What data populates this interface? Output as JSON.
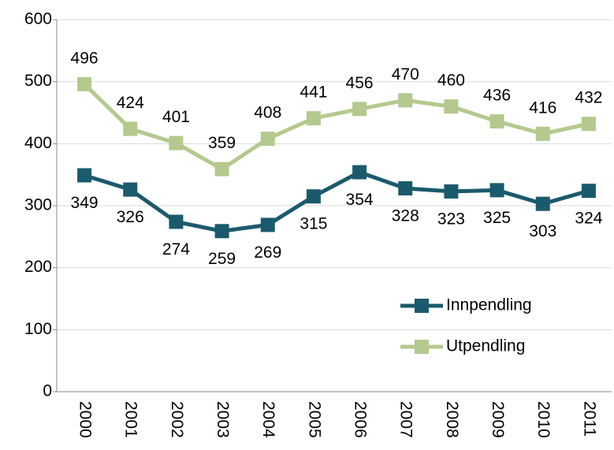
{
  "chart_data": {
    "type": "line",
    "categories": [
      "2000",
      "2001",
      "2002",
      "2003",
      "2004",
      "2005",
      "2006",
      "2007",
      "2008",
      "2009",
      "2010",
      "2011"
    ],
    "series": [
      {
        "name": "Innpendling",
        "color": "#1b5a6c",
        "values": [
          349,
          326,
          274,
          259,
          269,
          315,
          354,
          328,
          323,
          325,
          303,
          324
        ]
      },
      {
        "name": "Utpendling",
        "color": "#b4c98d",
        "values": [
          496,
          424,
          401,
          359,
          408,
          441,
          456,
          470,
          460,
          436,
          416,
          432
        ]
      }
    ],
    "ylim": [
      0,
      600
    ],
    "yticks": [
      0,
      100,
      200,
      300,
      400,
      500,
      600
    ],
    "grid": true,
    "legend": "right"
  }
}
